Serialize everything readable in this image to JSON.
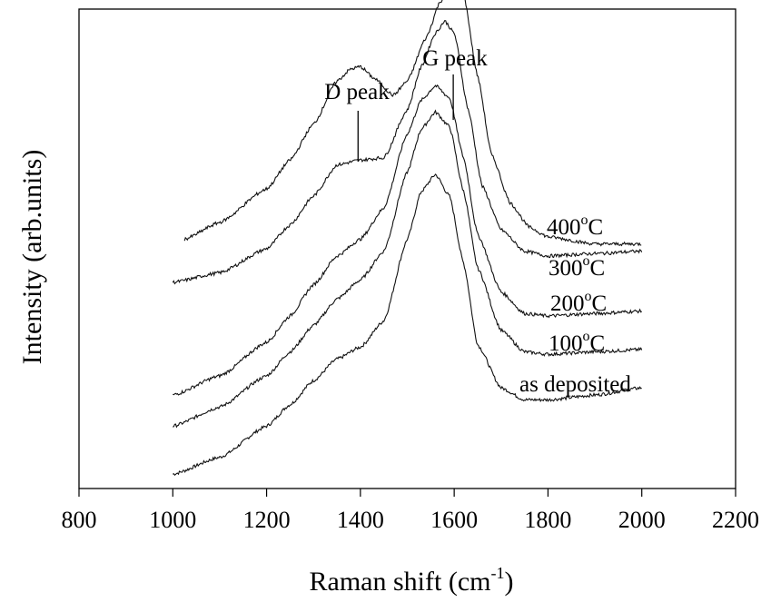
{
  "chart_data": {
    "type": "line",
    "xlabel": "Raman shift (cm",
    "xlabel_superscript": "-1",
    "xlabel_close": ")",
    "ylabel": "Intensity (arb.units)",
    "xlim": [
      800,
      2200
    ],
    "xticks": [
      "800",
      "1000",
      "1200",
      "1400",
      "1600",
      "1800",
      "2000",
      "2200"
    ],
    "ylim": [
      0,
      10
    ],
    "ytick_labels": "none",
    "grid": false,
    "legend": "inline labels right of curves",
    "peak_annotations": [
      {
        "label": "D peak",
        "x": 1395
      },
      {
        "label": "G peak",
        "x": 1598
      }
    ],
    "series": [
      {
        "name": "as deposited",
        "label_main": "as deposited",
        "label_sup": "",
        "label_tail": "",
        "x": [
          1000,
          1100,
          1200,
          1250,
          1300,
          1350,
          1400,
          1450,
          1500,
          1530,
          1560,
          1590,
          1620,
          1650,
          1700,
          1750,
          1800,
          1900,
          2000
        ],
        "y": [
          0.3,
          0.65,
          1.3,
          1.75,
          2.25,
          2.7,
          2.95,
          3.5,
          5.2,
          6.2,
          6.55,
          6.1,
          4.7,
          3.0,
          2.1,
          1.85,
          1.85,
          1.95,
          2.1
        ]
      },
      {
        "name": "100°C",
        "label_main": "100",
        "label_sup": "o",
        "label_tail": "C",
        "x": [
          1000,
          1100,
          1200,
          1250,
          1300,
          1350,
          1400,
          1450,
          1500,
          1530,
          1560,
          1590,
          1620,
          1650,
          1700,
          1750,
          1800,
          1900,
          2000
        ],
        "y": [
          1.3,
          1.7,
          2.35,
          2.85,
          3.4,
          3.95,
          4.35,
          4.95,
          6.6,
          7.5,
          7.85,
          7.55,
          6.2,
          4.6,
          3.3,
          2.85,
          2.8,
          2.85,
          2.9
        ]
      },
      {
        "name": "200°C",
        "label_main": "200",
        "label_sup": "o",
        "label_tail": "C",
        "x": [
          1000,
          1100,
          1200,
          1250,
          1300,
          1350,
          1400,
          1450,
          1500,
          1530,
          1560,
          1590,
          1620,
          1650,
          1700,
          1750,
          1800,
          1900,
          2000
        ],
        "y": [
          1.95,
          2.35,
          3.05,
          3.6,
          4.25,
          4.85,
          5.2,
          5.85,
          7.4,
          8.1,
          8.4,
          8.15,
          6.9,
          5.3,
          4.1,
          3.65,
          3.6,
          3.65,
          3.7
        ]
      },
      {
        "name": "300°C",
        "label_main": "300",
        "label_sup": "o",
        "label_tail": "C",
        "x": [
          1000,
          1100,
          1200,
          1250,
          1300,
          1350,
          1400,
          1450,
          1500,
          1530,
          1560,
          1580,
          1600,
          1630,
          1660,
          1700,
          1750,
          1800,
          1900,
          2000
        ],
        "y": [
          4.3,
          4.5,
          5.0,
          5.5,
          6.1,
          6.75,
          6.85,
          6.9,
          7.9,
          8.8,
          9.5,
          9.75,
          9.5,
          7.9,
          6.3,
          5.4,
          4.95,
          4.85,
          4.9,
          4.95
        ]
      },
      {
        "name": "400°C",
        "label_main": "400",
        "label_sup": "o",
        "label_tail": "C",
        "x": [
          1025,
          1100,
          1200,
          1250,
          1300,
          1350,
          1380,
          1400,
          1430,
          1470,
          1500,
          1540,
          1570,
          1600,
          1620,
          1650,
          1680,
          1720,
          1760,
          1800,
          1900,
          2000
        ],
        "y": [
          5.2,
          5.55,
          6.25,
          6.85,
          7.6,
          8.5,
          8.75,
          8.8,
          8.55,
          8.2,
          8.5,
          9.4,
          10.15,
          10.65,
          10.3,
          8.6,
          6.95,
          5.95,
          5.45,
          5.25,
          5.1,
          5.1
        ]
      }
    ]
  }
}
